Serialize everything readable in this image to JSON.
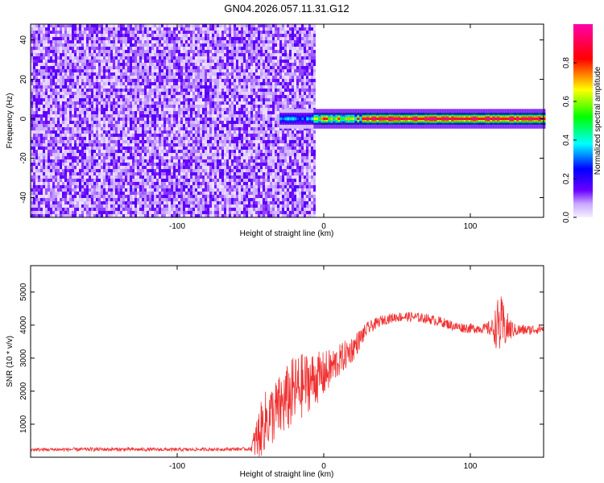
{
  "figure": {
    "title": "GN04.2026.057.11.31.G12"
  },
  "chart_data": [
    {
      "type": "heatmap",
      "title": "GN04.2026.057.11.31.G12",
      "xlabel": "Height of straight line (km)",
      "ylabel": "Frequency (Hz)",
      "xlim": [
        -200,
        150
      ],
      "ylim": [
        -50,
        48
      ],
      "x_ticks": [
        -100,
        0,
        100
      ],
      "y_ticks": [
        -40,
        -20,
        0,
        20,
        40
      ],
      "colorbar": {
        "label": "Normalized spectral amplitude",
        "range": [
          0.0,
          1.0
        ],
        "ticks": [
          0.0,
          0.2,
          0.4,
          0.6,
          0.8
        ],
        "colormap": [
          "#ffffff",
          "#6a00ff",
          "#0000ff",
          "#00ffff",
          "#00ff00",
          "#ffff00",
          "#ff0000",
          "#ff00aa"
        ]
      },
      "regions": [
        {
          "x_range": [
            -200,
            -7
          ],
          "y_range": [
            -50,
            48
          ],
          "amplitude": 0.12,
          "pattern": "noise"
        },
        {
          "x_range": [
            -30,
            150
          ],
          "y_range": [
            -3,
            3
          ],
          "amplitude": 0.9,
          "pattern": "tone_band"
        }
      ]
    },
    {
      "type": "line",
      "xlabel": "Height of straight line (km)",
      "ylabel": "SNR (10 * v/v)",
      "xlim": [
        -200,
        150
      ],
      "ylim": [
        0,
        5800
      ],
      "x_ticks": [
        -100,
        0,
        100
      ],
      "y_ticks": [
        1000,
        2000,
        3000,
        4000,
        5000
      ],
      "color": "#f03030",
      "envelope": {
        "x": [
          -200,
          -150,
          -100,
          -50,
          -45,
          -40,
          -30,
          -20,
          -10,
          0,
          10,
          20,
          30,
          40,
          50,
          60,
          70,
          80,
          90,
          100,
          110,
          115,
          120,
          125,
          130,
          140,
          150
        ],
        "mean": [
          230,
          240,
          230,
          250,
          600,
          1100,
          1500,
          2000,
          2300,
          2500,
          2900,
          3300,
          3900,
          4150,
          4250,
          4250,
          4200,
          4100,
          3950,
          3900,
          3900,
          3900,
          4000,
          3900,
          3850,
          3850,
          3900
        ],
        "spread": [
          50,
          60,
          50,
          50,
          800,
          900,
          1000,
          1100,
          900,
          700,
          500,
          400,
          200,
          150,
          150,
          150,
          150,
          150,
          150,
          150,
          150,
          300,
          1000,
          500,
          200,
          150,
          150
        ]
      }
    }
  ]
}
